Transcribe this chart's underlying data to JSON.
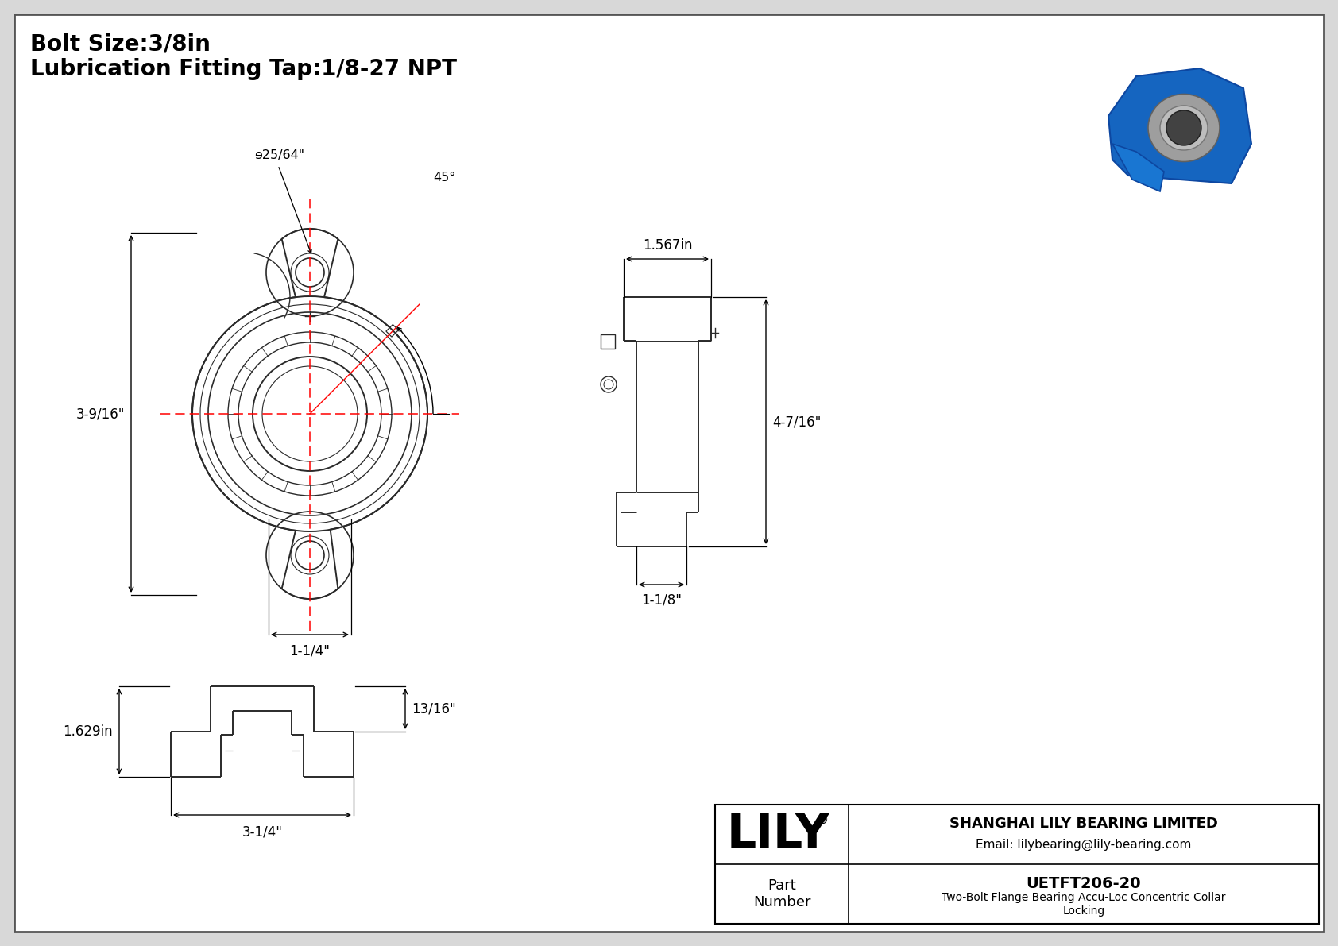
{
  "bg_color": "#d8d8d8",
  "border_color": "#000000",
  "title_line1": "Bolt Size:3/8in",
  "title_line2": "Lubrication Fitting Tap:1/8-27 NPT",
  "dim_color": "#000000",
  "red_line_color": "#ff0000",
  "drawing_line_color": "#2a2a2a",
  "company_name": "SHANGHAI LILY BEARING LIMITED",
  "company_email": "Email: lilybearing@lily-bearing.com",
  "part_label": "Part\nNumber",
  "part_number": "UETFT206-20",
  "part_desc": "Two-Bolt Flange Bearing Accu-Loc Concentric Collar\nLocking",
  "lily_text": "LILY",
  "dim_25_64": "ɘ25/64\"",
  "dim_45": "45°",
  "dim_3_9_16": "3-9/16\"",
  "dim_1_1_4": "1-1/4\"",
  "dim_1_567": "1.567in",
  "dim_4_7_16": "4-7/16\"",
  "dim_1_1_8": "1-1/8\"",
  "dim_13_16": "13/16\"",
  "dim_1_629": "1.629in",
  "dim_3_1_4": "3-1/4\""
}
